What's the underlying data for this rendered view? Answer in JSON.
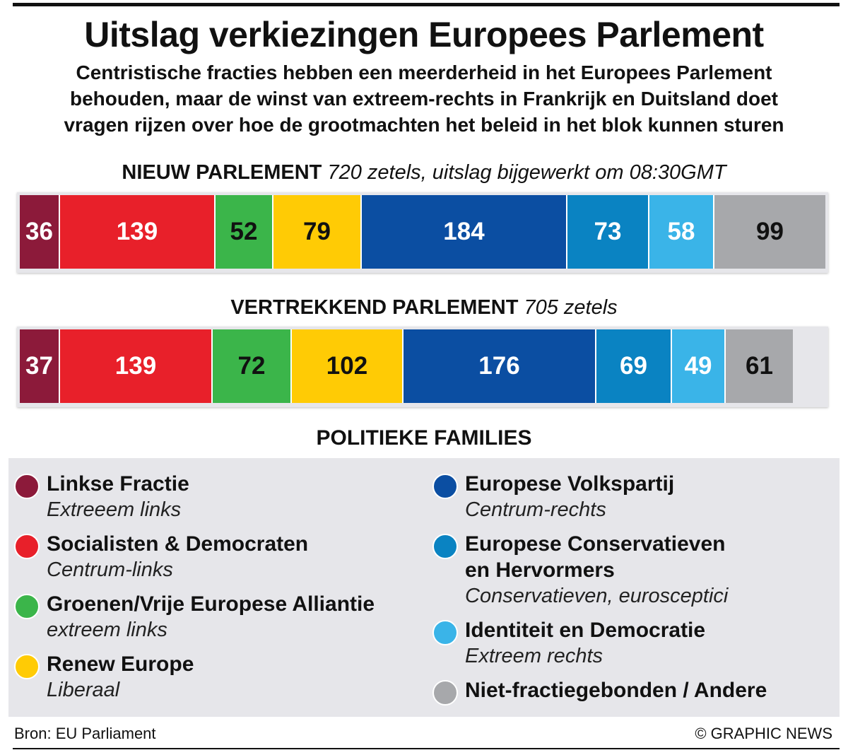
{
  "title": "Uitslag verkiezingen Europees Parlement",
  "subtitle_lines": [
    "Centristische fracties hebben een meerderheid in het Europees Parlement",
    "behouden, maar de winst van extreem-rechts in Frankrijk en Duitsland doet",
    "vragen rijzen over hoe de grootmachten het beleid in het blok kunnen sturen"
  ],
  "colors": {
    "left": "#8c1a3a",
    "sd": "#e8202a",
    "greens": "#3bb54a",
    "renew": "#ffcb05",
    "epp": "#0b4ea2",
    "ecr": "#0a83c2",
    "id": "#3ab4e8",
    "ni": "#a7a8ab"
  },
  "chart_data": [
    {
      "type": "bar",
      "orientation": "horizontal-stacked",
      "heading": "NIEUW PARLEMENT",
      "note": "720 zetels, uitslag bijgewerkt om 08:30GMT",
      "total": 720,
      "categories": [
        "Linkse Fractie",
        "Socialisten & Democraten",
        "Groenen/Vrije Europese Alliantie",
        "Renew Europe",
        "Europese Volkspartij",
        "Europese Conservatieven en Hervormers",
        "Identiteit en Democratie",
        "Niet-fractiegebonden / Andere"
      ],
      "values": [
        36,
        139,
        52,
        79,
        184,
        73,
        58,
        99
      ]
    },
    {
      "type": "bar",
      "orientation": "horizontal-stacked",
      "heading": "VERTREKKEND PARLEMENT",
      "note": "705 zetels",
      "total": 705,
      "categories": [
        "Linkse Fractie",
        "Socialisten & Democraten",
        "Groenen/Vrije Europese Alliantie",
        "Renew Europe",
        "Europese Volkspartij",
        "Europese Conservatieven en Hervormers",
        "Identiteit en Democratie",
        "Niet-fractiegebonden / Andere"
      ],
      "values": [
        37,
        139,
        72,
        102,
        176,
        69,
        49,
        61
      ]
    }
  ],
  "legend": {
    "heading": "POLITIEKE FAMILIES",
    "left": [
      {
        "name": "Linkse Fractie",
        "desc": "Extreeem links",
        "color": "#8c1a3a"
      },
      {
        "name": "Socialisten & Democraten",
        "desc": "Centrum-links",
        "color": "#e8202a"
      },
      {
        "name": "Groenen/Vrije Europese Alliantie",
        "desc": "extreem links",
        "color": "#3bb54a"
      },
      {
        "name": "Renew Europe",
        "desc": "Liberaal",
        "color": "#ffcb05"
      }
    ],
    "right": [
      {
        "name": "Europese Volkspartij",
        "desc": "Centrum-rechts",
        "color": "#0b4ea2"
      },
      {
        "name": "Europese Conservatieven",
        "name2": "en Hervormers",
        "desc": "Conservatieven, eurosceptici",
        "color": "#0a83c2"
      },
      {
        "name": "Identiteit en Democratie",
        "desc": "Extreem rechts",
        "color": "#3ab4e8"
      },
      {
        "name": "Niet-fractiegebonden / Andere",
        "desc": "",
        "color": "#a7a8ab"
      }
    ]
  },
  "footer": {
    "source": "Bron: EU Parliament",
    "credit": "© GRAPHIC NEWS"
  }
}
